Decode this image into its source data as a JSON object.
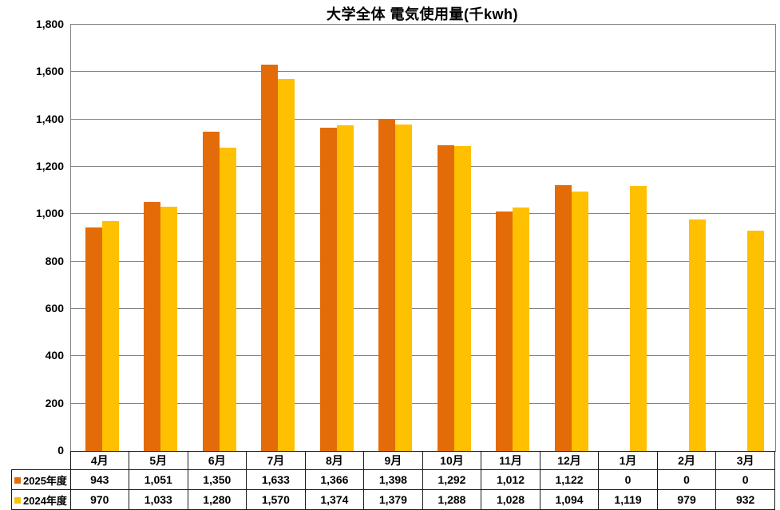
{
  "title": "大学全体 電気使用量(千kwh)",
  "colors": {
    "series_2025": "#E36C09",
    "series_2024": "#FFC000",
    "gridline": "#848484",
    "table_border": "#1a1a1a",
    "background": "#ffffff",
    "text": "#000000"
  },
  "chart_data": {
    "type": "bar",
    "title": "大学全体 電気使用量(千kwh)",
    "categories": [
      "4月",
      "5月",
      "6月",
      "7月",
      "8月",
      "9月",
      "10月",
      "11月",
      "12月",
      "1月",
      "2月",
      "3月"
    ],
    "series": [
      {
        "name": "2025年度",
        "key": "fy2025",
        "color": "#E36C09",
        "values": [
          943,
          1051,
          1350,
          1633,
          1366,
          1398,
          1292,
          1012,
          1122,
          0,
          0,
          0
        ]
      },
      {
        "name": "2024年度",
        "key": "fy2024",
        "color": "#FFC000",
        "values": [
          970,
          1033,
          1280,
          1570,
          1374,
          1379,
          1288,
          1028,
          1094,
          1119,
          979,
          932
        ]
      }
    ],
    "xlabel": "",
    "ylabel": "",
    "ylim": [
      0,
      1800
    ],
    "ytick_step": 200,
    "ytick_labels": [
      "0",
      "200",
      "400",
      "600",
      "800",
      "1,000",
      "1,200",
      "1,400",
      "1,600",
      "1,800"
    ],
    "grid": true,
    "legend_position": "table-left",
    "table_legend": true
  }
}
